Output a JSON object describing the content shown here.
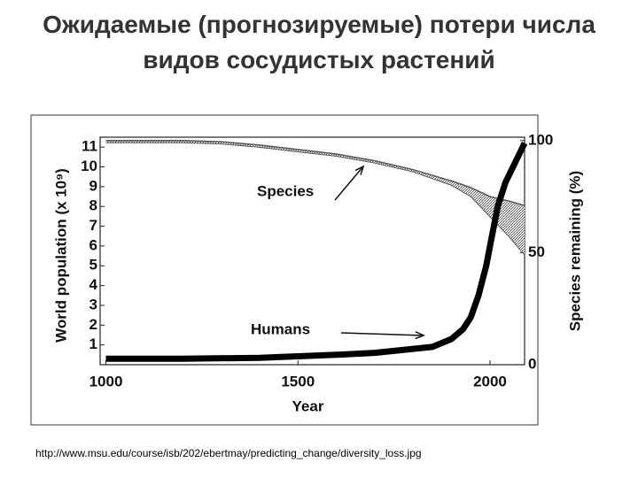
{
  "title": "Ожидаемые (прогнозируемые) потери числа видов сосудистых растений",
  "source": "http://www.msu.edu/course/isb/202/ebertmay/predicting_change/diversity_loss.jpg",
  "chart_data": {
    "type": "line",
    "xlabel": "Year",
    "ylabel": "World population (x 10⁹)",
    "y2label": "Species remaining (%)",
    "xlim": [
      985,
      2090
    ],
    "xticks": [
      1000,
      1500,
      2000
    ],
    "ylim": [
      0,
      11.5
    ],
    "yticks": [
      1,
      2,
      3,
      4,
      5,
      6,
      7,
      8,
      9,
      10,
      11
    ],
    "y2lim": [
      0,
      101.5
    ],
    "y2ticks": [
      0,
      50,
      100
    ],
    "grid": false,
    "series": [
      {
        "name": "Species",
        "color": "#555555",
        "axis": "y2",
        "x": [
          1000,
          1100,
          1200,
          1300,
          1400,
          1500,
          1600,
          1700,
          1800,
          1900,
          1950,
          2000,
          2050,
          2090
        ],
        "values": [
          100,
          100,
          100,
          99.5,
          98,
          96,
          94,
          91,
          87,
          82,
          79,
          75,
          73,
          71
        ],
        "low": [
          99,
          99,
          99,
          98.5,
          97,
          95,
          93,
          90,
          86,
          80,
          75,
          66,
          57,
          49
        ]
      },
      {
        "name": "Humans",
        "color": "#000000",
        "x": [
          1000,
          1200,
          1400,
          1600,
          1700,
          1800,
          1850,
          1900,
          1930,
          1950,
          1970,
          1990,
          2000,
          2020,
          2040,
          2060,
          2080,
          2090
        ],
        "values": [
          0.3,
          0.3,
          0.35,
          0.5,
          0.6,
          0.8,
          0.9,
          1.3,
          1.8,
          2.4,
          3.5,
          5.0,
          6.0,
          8.0,
          9.2,
          10.0,
          10.8,
          11.2
        ]
      }
    ]
  }
}
